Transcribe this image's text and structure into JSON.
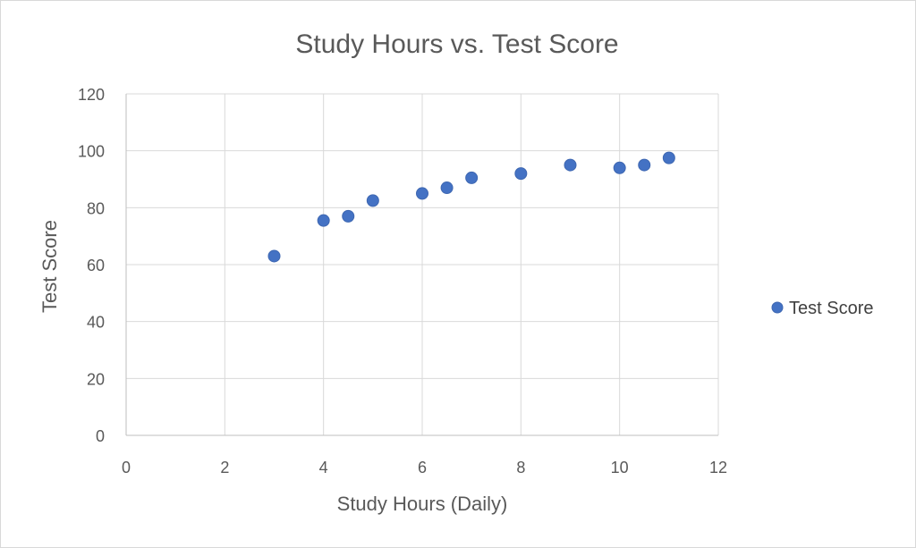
{
  "chart_data": {
    "type": "scatter",
    "title": "Study Hours vs. Test Score",
    "xlabel": "Study Hours (Daily)",
    "ylabel": "Test Score",
    "xlim": [
      0,
      12
    ],
    "ylim": [
      0,
      120
    ],
    "x_ticks": [
      0,
      2,
      4,
      6,
      8,
      10,
      12
    ],
    "y_ticks": [
      0,
      20,
      40,
      60,
      80,
      100,
      120
    ],
    "grid": true,
    "legend_position": "right",
    "series": [
      {
        "name": "Test Score",
        "color": "#4472C4",
        "points": [
          {
            "x": 3,
            "y": 63
          },
          {
            "x": 4,
            "y": 75.5
          },
          {
            "x": 4.5,
            "y": 77
          },
          {
            "x": 5,
            "y": 82.5
          },
          {
            "x": 6,
            "y": 85
          },
          {
            "x": 6.5,
            "y": 87
          },
          {
            "x": 7,
            "y": 90.5
          },
          {
            "x": 8,
            "y": 92
          },
          {
            "x": 9,
            "y": 95
          },
          {
            "x": 10,
            "y": 94
          },
          {
            "x": 10.5,
            "y": 95
          },
          {
            "x": 11,
            "y": 97.5
          }
        ]
      }
    ]
  }
}
